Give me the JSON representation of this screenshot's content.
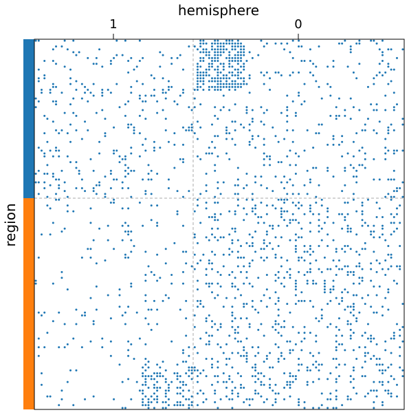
{
  "chart_data": {
    "type": "scatter",
    "title": "",
    "xlabel": "hemisphere",
    "ylabel": "region",
    "x_group_labels": [
      "1",
      "0"
    ],
    "y_group_colors": [
      "#1f77b4",
      "#ff7f0e"
    ],
    "grid": "dashed block separators",
    "point_color": "#1f77b4",
    "n": 128,
    "x_split": 55,
    "y_split": 55,
    "blocks": [
      {
        "rows": [
          0,
          55
        ],
        "cols": [
          0,
          55
        ],
        "density": 0.09
      },
      {
        "rows": [
          0,
          55
        ],
        "cols": [
          55,
          128
        ],
        "density": 0.09
      },
      {
        "rows": [
          55,
          128
        ],
        "cols": [
          0,
          55
        ],
        "density": 0.05
      },
      {
        "rows": [
          55,
          128
        ],
        "cols": [
          55,
          128
        ],
        "density": 0.14
      },
      {
        "rows": [
          0,
          18
        ],
        "cols": [
          56,
          73
        ],
        "density": 0.62
      },
      {
        "rows": [
          111,
          128
        ],
        "cols": [
          37,
          55
        ],
        "density": 0.32
      }
    ]
  }
}
